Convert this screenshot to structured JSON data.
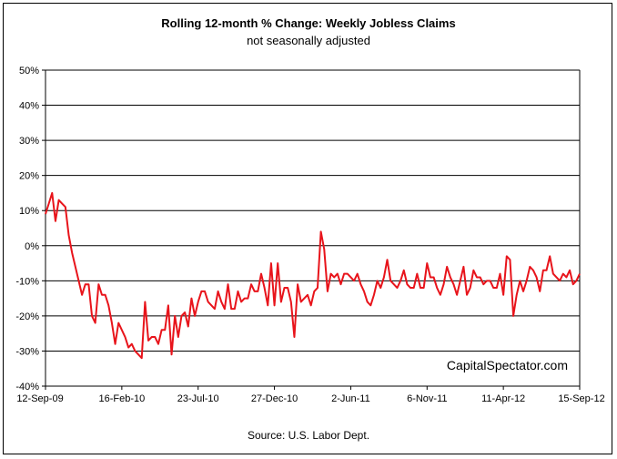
{
  "header": {
    "title": "Rolling 12-month %  Change: Weekly Jobless Claims",
    "subtitle": "not seasonally adjusted"
  },
  "footer": {
    "source": "Source: U.S. Labor Dept."
  },
  "watermark": "CapitalSpectator.com",
  "colors": {
    "series": "#e8141b",
    "grid": "#000000",
    "background": "#ffffff"
  },
  "chart_data": {
    "type": "line",
    "title": "Rolling 12-month %  Change: Weekly Jobless Claims",
    "subtitle": "not seasonally adjusted",
    "xlabel": "",
    "ylabel": "",
    "ylim": [
      -40,
      50
    ],
    "y_ticks": [
      "50%",
      "40%",
      "30%",
      "20%",
      "10%",
      "0%",
      "-10%",
      "-20%",
      "-30%",
      "-40%"
    ],
    "y_tick_values": [
      50,
      40,
      30,
      20,
      10,
      0,
      -10,
      -20,
      -30,
      -40
    ],
    "x_tick_labels": [
      "12-Sep-09",
      "16-Feb-10",
      "23-Jul-10",
      "27-Dec-10",
      "2-Jun-11",
      "6-Nov-11",
      "11-Apr-12",
      "15-Sep-12"
    ],
    "grid": "horizontal",
    "legend": "none",
    "series": [
      {
        "color": "#e8141b",
        "values": [
          9,
          12,
          15,
          7,
          13,
          12,
          11,
          3,
          -2,
          -6,
          -10,
          -14,
          -11,
          -11,
          -20,
          -22,
          -11,
          -14,
          -14,
          -17,
          -22,
          -28,
          -22,
          -24,
          -26,
          -29,
          -28,
          -30,
          -31,
          -32,
          -16,
          -27,
          -26,
          -26,
          -28,
          -24,
          -24,
          -17,
          -31,
          -20,
          -26,
          -20,
          -19,
          -23,
          -15,
          -20,
          -16,
          -13,
          -13,
          -16,
          -17,
          -18,
          -13,
          -16,
          -18,
          -11,
          -18,
          -18,
          -13,
          -16,
          -15,
          -15,
          -11,
          -13,
          -13,
          -8,
          -12,
          -17,
          -5,
          -17,
          -5,
          -16,
          -12,
          -12,
          -16,
          -26,
          -11,
          -16,
          -15,
          -14,
          -17,
          -13,
          -12,
          4,
          -1,
          -13,
          -8,
          -9,
          -8,
          -11,
          -8,
          -8,
          -9,
          -10,
          -8,
          -11,
          -13,
          -16,
          -17,
          -14,
          -10,
          -12,
          -9,
          -4,
          -10,
          -11,
          -12,
          -10,
          -7,
          -11,
          -12,
          -12,
          -8,
          -12,
          -12,
          -5,
          -9,
          -9,
          -12,
          -14,
          -11,
          -6,
          -9,
          -11,
          -14,
          -10,
          -6,
          -14,
          -12,
          -7,
          -9,
          -9,
          -11,
          -10,
          -10,
          -12,
          -12,
          -8,
          -14,
          -3,
          -4,
          -20,
          -14,
          -10,
          -13,
          -10,
          -6,
          -7,
          -9,
          -13,
          -7,
          -7,
          -3,
          -8,
          -9,
          -10,
          -8,
          -9,
          -7,
          -11,
          -10,
          -8
        ]
      }
    ]
  }
}
